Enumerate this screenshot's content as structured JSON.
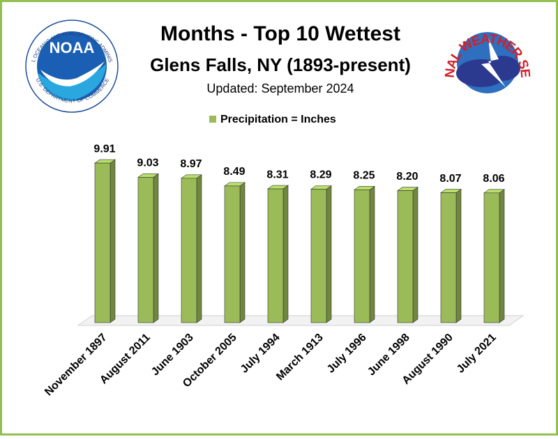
{
  "chart_data": {
    "type": "bar",
    "title": "Months - Top 10 Wettest",
    "subtitle": "Glens Falls, NY (1893-present)",
    "updated": "Updated: September 2024",
    "categories": [
      "November 1897",
      "August 2011",
      "June 1903",
      "October 2005",
      "July 1994",
      "March 1913",
      "July 1996",
      "June 1998",
      "August 1990",
      "July 2021"
    ],
    "series": [
      {
        "name": "Precipitation = Inches",
        "color": "#9bbb59",
        "values": [
          9.91,
          9.03,
          8.97,
          8.49,
          8.31,
          8.29,
          8.25,
          8.2,
          8.07,
          8.06
        ],
        "value_labels": [
          "9.91",
          "9.03",
          "8.97",
          "8.49",
          "8.31",
          "8.29",
          "8.25",
          "8.20",
          "8.07",
          "8.06"
        ]
      }
    ],
    "ylim": [
      0,
      10
    ],
    "legend": "top"
  },
  "logos": {
    "noaa": "NOAA",
    "noaa_ring_top": "NATIONAL OCEANIC AND ATMOSPHERIC ADMINISTRATION",
    "noaa_ring_bottom": "U.S. DEPARTMENT OF COMMERCE",
    "nws": "NATIONAL WEATHER SERVICE"
  }
}
